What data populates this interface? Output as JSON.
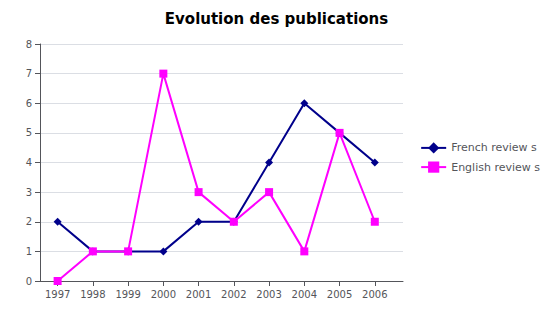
{
  "chart_data": {
    "type": "line",
    "title": "Evolution des publications",
    "x": [
      1997,
      1998,
      1999,
      2000,
      2001,
      2002,
      2003,
      2004,
      2005,
      2006
    ],
    "series": [
      {
        "name": "French review s",
        "color": "#00008B",
        "marker": "diamond",
        "line_style": "solid",
        "values": [
          2,
          1,
          1,
          1,
          2,
          2,
          4,
          6,
          5,
          4
        ]
      },
      {
        "name": "English review s",
        "color": "#FF00FF",
        "marker": "square",
        "line_style": "solid",
        "values": [
          0,
          1,
          1,
          7,
          3,
          2,
          3,
          1,
          5,
          2
        ]
      }
    ],
    "xlim": [
      1996.5,
      2006.8
    ],
    "xticks": [
      1997,
      1998,
      1999,
      2000,
      2001,
      2002,
      2003,
      2004,
      2005,
      2006
    ],
    "ylim": [
      0,
      8
    ],
    "yticks": [
      0,
      1,
      2,
      3,
      4,
      5,
      6,
      7,
      8
    ],
    "grid": true,
    "legend": "right"
  }
}
